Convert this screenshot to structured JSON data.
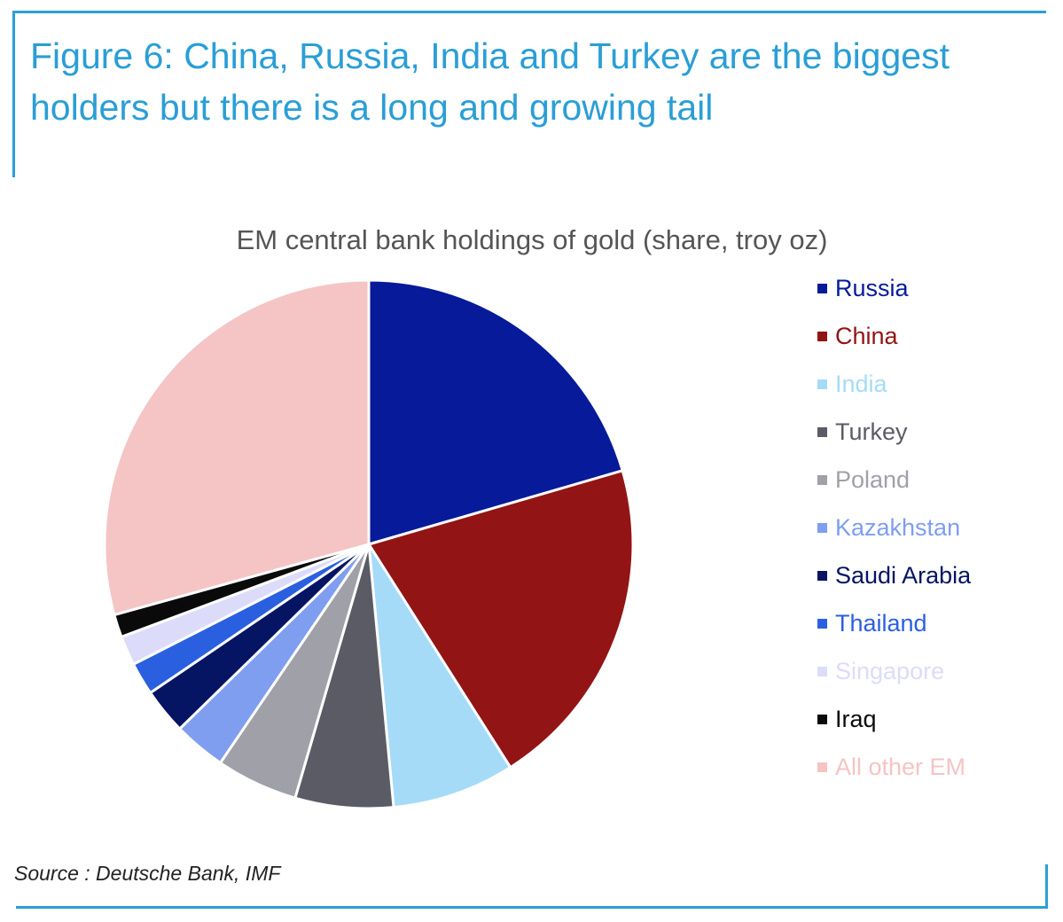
{
  "figure_title": "Figure 6: China, Russia, India and Turkey are the biggest holders but there is a long and growing tail",
  "source": "Source : Deutsche Bank, IMF",
  "chart_data": {
    "type": "pie",
    "title": "EM central bank holdings of gold (share, troy oz)",
    "legend_position": "right",
    "start_angle_deg": 0,
    "direction": "clockwise",
    "slices": [
      {
        "label": "Russia",
        "value": 20.5,
        "color": "#061a9a",
        "text_color": "#061a9a"
      },
      {
        "label": "China",
        "value": 20.5,
        "color": "#931414",
        "text_color": "#931414"
      },
      {
        "label": "India",
        "value": 7.5,
        "color": "#a6dbf7",
        "text_color": "#a6dbf7"
      },
      {
        "label": "Turkey",
        "value": 6.0,
        "color": "#5b5b66",
        "text_color": "#5b5b66"
      },
      {
        "label": "Poland",
        "value": 5.0,
        "color": "#a0a0a8",
        "text_color": "#a0a0a8"
      },
      {
        "label": "Kazakhstan",
        "value": 3.2,
        "color": "#7f9ef0",
        "text_color": "#7f9ef0"
      },
      {
        "label": "Saudi Arabia",
        "value": 2.8,
        "color": "#061464",
        "text_color": "#061464"
      },
      {
        "label": "Thailand",
        "value": 2.0,
        "color": "#2a5fe0",
        "text_color": "#2a5fe0"
      },
      {
        "label": "Singapore",
        "value": 1.8,
        "color": "#dcdcfa",
        "text_color": "#dcdcfa"
      },
      {
        "label": "Iraq",
        "value": 1.4,
        "color": "#0a0a0a",
        "text_color": "#0a0a0a"
      },
      {
        "label": "All other EM",
        "value": 29.3,
        "color": "#f5c4c4",
        "text_color": "#f5c4c4"
      }
    ]
  }
}
